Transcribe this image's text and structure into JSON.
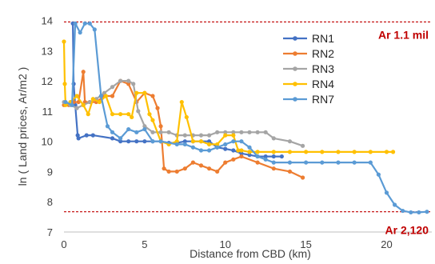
{
  "chart_data": {
    "type": "line",
    "xlabel": "Distance from CBD (km)",
    "ylabel": "ln ( Land prices, Ar/m2 )",
    "xlim": [
      0,
      22.8
    ],
    "ylim": [
      7,
      14.2
    ],
    "xticks": [
      0,
      5,
      10,
      15,
      20
    ],
    "yticks": [
      7,
      8,
      9,
      10,
      11,
      12,
      13,
      14
    ],
    "grid": false,
    "legend_position": "top-right",
    "reference_lines": [
      {
        "y": 13.95,
        "label": "Ar 1.1 mil",
        "color": "#c00000"
      },
      {
        "y": 7.67,
        "label": "Ar 2,120",
        "color": "#c00000"
      }
    ],
    "series": [
      {
        "name": "RN1",
        "color": "#4472c4",
        "points": [
          [
            0.55,
            13.9
          ],
          [
            0.6,
            11.9
          ],
          [
            0.7,
            11.2
          ],
          [
            0.85,
            10.2
          ],
          [
            0.9,
            10.1
          ],
          [
            1.4,
            10.2
          ],
          [
            1.8,
            10.2
          ],
          [
            3.0,
            10.1
          ],
          [
            3.5,
            10.0
          ],
          [
            4.0,
            10.0
          ],
          [
            4.5,
            10.0
          ],
          [
            5.0,
            10.0
          ],
          [
            5.5,
            10.0
          ],
          [
            6.0,
            10.0
          ],
          [
            6.5,
            9.95
          ],
          [
            7.0,
            9.95
          ],
          [
            7.5,
            10.0
          ],
          [
            8.0,
            10.0
          ],
          [
            8.5,
            10.0
          ],
          [
            9.0,
            10.0
          ],
          [
            9.5,
            9.8
          ],
          [
            10.0,
            9.75
          ],
          [
            10.5,
            9.7
          ],
          [
            11.0,
            9.6
          ],
          [
            11.5,
            9.55
          ],
          [
            12.0,
            9.5
          ],
          [
            12.5,
            9.5
          ],
          [
            13.0,
            9.5
          ],
          [
            13.5,
            9.5
          ]
        ]
      },
      {
        "name": "RN2",
        "color": "#ed7d31",
        "points": [
          [
            0.0,
            11.2
          ],
          [
            0.3,
            11.2
          ],
          [
            0.6,
            11.3
          ],
          [
            0.9,
            11.3
          ],
          [
            1.2,
            12.3
          ],
          [
            1.3,
            11.3
          ],
          [
            1.6,
            11.3
          ],
          [
            2.0,
            11.3
          ],
          [
            2.5,
            11.5
          ],
          [
            3.0,
            11.5
          ],
          [
            3.5,
            12.0
          ],
          [
            4.0,
            11.9
          ],
          [
            4.5,
            11.3
          ],
          [
            5.0,
            11.6
          ],
          [
            5.5,
            11.5
          ],
          [
            5.8,
            11.1
          ],
          [
            6.0,
            10.5
          ],
          [
            6.2,
            9.1
          ],
          [
            6.5,
            9.0
          ],
          [
            7.0,
            9.0
          ],
          [
            7.5,
            9.1
          ],
          [
            8.0,
            9.3
          ],
          [
            8.5,
            9.2
          ],
          [
            9.0,
            9.1
          ],
          [
            9.5,
            9.0
          ],
          [
            10.0,
            9.3
          ],
          [
            10.5,
            9.4
          ],
          [
            11.0,
            9.5
          ],
          [
            12.0,
            9.3
          ],
          [
            13.0,
            9.1
          ],
          [
            14.0,
            9.0
          ],
          [
            14.8,
            8.8
          ]
        ]
      },
      {
        "name": "RN3",
        "color": "#a5a5a5",
        "points": [
          [
            0.0,
            11.3
          ],
          [
            0.4,
            11.2
          ],
          [
            0.8,
            11.1
          ],
          [
            1.2,
            11.2
          ],
          [
            1.6,
            11.3
          ],
          [
            2.0,
            11.4
          ],
          [
            2.5,
            11.6
          ],
          [
            3.0,
            11.8
          ],
          [
            3.5,
            12.0
          ],
          [
            4.0,
            12.0
          ],
          [
            4.3,
            11.9
          ],
          [
            4.6,
            11.0
          ],
          [
            5.0,
            10.5
          ],
          [
            5.5,
            10.3
          ],
          [
            6.0,
            10.3
          ],
          [
            6.5,
            10.3
          ],
          [
            7.0,
            10.2
          ],
          [
            7.5,
            10.2
          ],
          [
            8.0,
            10.2
          ],
          [
            8.5,
            10.2
          ],
          [
            9.0,
            10.2
          ],
          [
            9.5,
            10.3
          ],
          [
            10.0,
            10.3
          ],
          [
            10.5,
            10.3
          ],
          [
            11.0,
            10.3
          ],
          [
            11.5,
            10.3
          ],
          [
            12.0,
            10.3
          ],
          [
            12.5,
            10.3
          ],
          [
            13.0,
            10.1
          ],
          [
            14.0,
            10.0
          ],
          [
            14.8,
            9.85
          ]
        ]
      },
      {
        "name": "RN4",
        "color": "#ffc000",
        "points": [
          [
            0.0,
            13.3
          ],
          [
            0.05,
            11.9
          ],
          [
            0.1,
            11.2
          ],
          [
            0.4,
            11.3
          ],
          [
            0.8,
            11.5
          ],
          [
            1.2,
            11.2
          ],
          [
            1.5,
            10.9
          ],
          [
            1.8,
            11.4
          ],
          [
            2.2,
            11.3
          ],
          [
            2.6,
            11.5
          ],
          [
            3.0,
            10.9
          ],
          [
            3.5,
            10.9
          ],
          [
            4.0,
            10.9
          ],
          [
            4.2,
            10.8
          ],
          [
            4.5,
            11.6
          ],
          [
            5.0,
            11.6
          ],
          [
            5.3,
            10.9
          ],
          [
            5.5,
            10.7
          ],
          [
            6.0,
            10.0
          ],
          [
            6.5,
            9.9
          ],
          [
            7.0,
            10.0
          ],
          [
            7.3,
            11.3
          ],
          [
            7.6,
            10.8
          ],
          [
            8.0,
            10.0
          ],
          [
            8.5,
            10.0
          ],
          [
            9.0,
            9.9
          ],
          [
            9.5,
            9.9
          ],
          [
            10.0,
            10.2
          ],
          [
            10.5,
            10.2
          ],
          [
            10.8,
            9.7
          ],
          [
            11.0,
            9.7
          ],
          [
            11.5,
            9.65
          ],
          [
            12.0,
            9.65
          ],
          [
            13.0,
            9.65
          ],
          [
            14.0,
            9.65
          ],
          [
            15.0,
            9.65
          ],
          [
            16.0,
            9.65
          ],
          [
            17.0,
            9.65
          ],
          [
            18.0,
            9.65
          ],
          [
            19.0,
            9.65
          ],
          [
            20.0,
            9.65
          ],
          [
            20.4,
            9.65
          ]
        ]
      },
      {
        "name": "RN7",
        "color": "#5b9bd5",
        "points": [
          [
            0.1,
            11.3
          ],
          [
            0.5,
            11.2
          ],
          [
            0.7,
            13.9
          ],
          [
            1.0,
            13.6
          ],
          [
            1.3,
            13.9
          ],
          [
            1.6,
            13.9
          ],
          [
            1.9,
            13.7
          ],
          [
            2.3,
            11.5
          ],
          [
            2.7,
            10.5
          ],
          [
            3.0,
            10.3
          ],
          [
            3.5,
            10.1
          ],
          [
            4.0,
            10.4
          ],
          [
            4.5,
            10.3
          ],
          [
            5.0,
            10.4
          ],
          [
            5.5,
            10.0
          ],
          [
            6.0,
            10.0
          ],
          [
            7.0,
            9.9
          ],
          [
            7.5,
            9.9
          ],
          [
            8.0,
            9.8
          ],
          [
            8.5,
            9.7
          ],
          [
            9.0,
            9.7
          ],
          [
            9.5,
            9.8
          ],
          [
            10.0,
            9.9
          ],
          [
            10.5,
            10.0
          ],
          [
            11.0,
            10.0
          ],
          [
            11.5,
            9.8
          ],
          [
            12.0,
            9.5
          ],
          [
            12.5,
            9.4
          ],
          [
            13.0,
            9.3
          ],
          [
            14.0,
            9.3
          ],
          [
            15.0,
            9.3
          ],
          [
            16.0,
            9.3
          ],
          [
            17.0,
            9.3
          ],
          [
            18.0,
            9.3
          ],
          [
            19.0,
            9.3
          ],
          [
            19.5,
            8.9
          ],
          [
            20.0,
            8.3
          ],
          [
            20.5,
            7.9
          ],
          [
            21.0,
            7.7
          ],
          [
            21.5,
            7.65
          ],
          [
            22.0,
            7.65
          ],
          [
            22.5,
            7.67
          ]
        ]
      }
    ]
  }
}
